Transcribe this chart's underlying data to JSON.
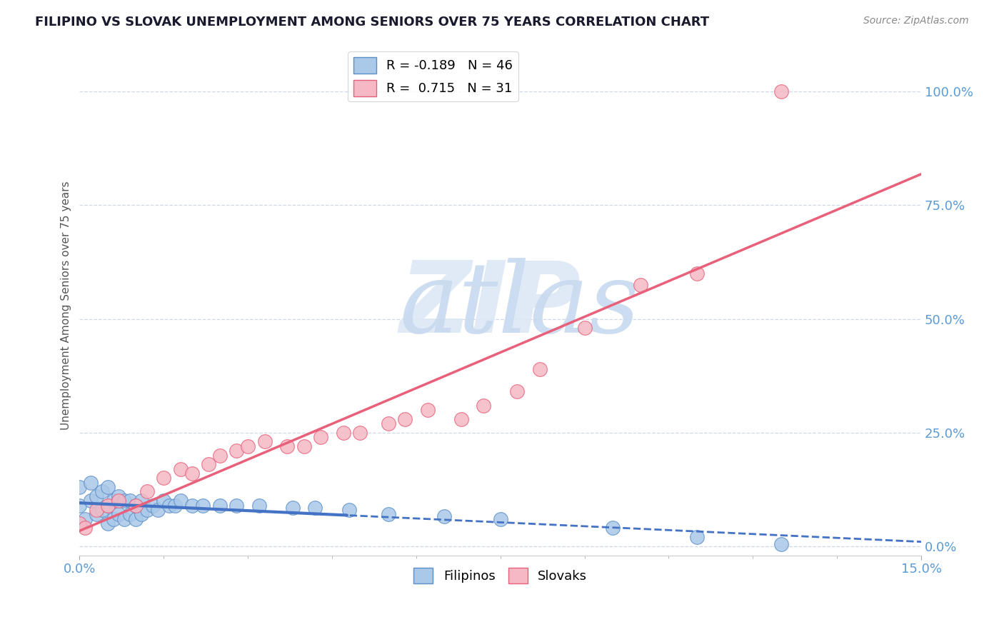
{
  "title": "FILIPINO VS SLOVAK UNEMPLOYMENT AMONG SENIORS OVER 75 YEARS CORRELATION CHART",
  "source": "Source: ZipAtlas.com",
  "ylabel": "Unemployment Among Seniors over 75 years",
  "ytick_vals": [
    0.0,
    0.25,
    0.5,
    0.75,
    1.0
  ],
  "ytick_labels": [
    "0.0%",
    "25.0%",
    "50.0%",
    "75.0%",
    "100.0%"
  ],
  "xlim": [
    0.0,
    0.15
  ],
  "ylim": [
    -0.02,
    1.08
  ],
  "legend_filipino_R": "-0.189",
  "legend_filipino_N": "46",
  "legend_slovak_R": "0.715",
  "legend_slovak_N": "31",
  "color_filipino_face": "#aac8e8",
  "color_filipino_edge": "#5a8fc8",
  "color_filipino_line": "#4472c4",
  "color_slovak_face": "#f5b8c4",
  "color_slovak_edge": "#e8607a",
  "color_slovak_line": "#e8607a",
  "filipino_x": [
    0.0,
    0.0,
    0.0,
    0.001,
    0.002,
    0.002,
    0.003,
    0.003,
    0.004,
    0.004,
    0.005,
    0.005,
    0.005,
    0.006,
    0.006,
    0.007,
    0.007,
    0.008,
    0.008,
    0.009,
    0.009,
    0.01,
    0.01,
    0.011,
    0.011,
    0.012,
    0.013,
    0.014,
    0.015,
    0.016,
    0.017,
    0.018,
    0.02,
    0.022,
    0.025,
    0.028,
    0.032,
    0.038,
    0.042,
    0.048,
    0.055,
    0.065,
    0.075,
    0.095,
    0.11,
    0.125
  ],
  "filipino_y": [
    0.05,
    0.09,
    0.13,
    0.06,
    0.1,
    0.14,
    0.07,
    0.11,
    0.08,
    0.12,
    0.05,
    0.09,
    0.13,
    0.06,
    0.1,
    0.07,
    0.11,
    0.06,
    0.1,
    0.07,
    0.1,
    0.06,
    0.09,
    0.07,
    0.1,
    0.08,
    0.09,
    0.08,
    0.1,
    0.09,
    0.09,
    0.1,
    0.09,
    0.09,
    0.09,
    0.09,
    0.09,
    0.085,
    0.085,
    0.08,
    0.07,
    0.065,
    0.06,
    0.04,
    0.02,
    0.005
  ],
  "slovak_x": [
    0.0,
    0.001,
    0.003,
    0.005,
    0.007,
    0.01,
    0.012,
    0.015,
    0.018,
    0.02,
    0.023,
    0.025,
    0.028,
    0.03,
    0.033,
    0.037,
    0.04,
    0.043,
    0.047,
    0.05,
    0.055,
    0.058,
    0.062,
    0.068,
    0.072,
    0.078,
    0.082,
    0.09,
    0.1,
    0.11,
    0.125
  ],
  "slovak_y": [
    0.05,
    0.04,
    0.08,
    0.09,
    0.1,
    0.09,
    0.12,
    0.15,
    0.17,
    0.16,
    0.18,
    0.2,
    0.21,
    0.22,
    0.23,
    0.22,
    0.22,
    0.24,
    0.25,
    0.25,
    0.27,
    0.28,
    0.3,
    0.28,
    0.31,
    0.34,
    0.39,
    0.48,
    0.575,
    0.6,
    1.0
  ],
  "trendline_split_x": 0.048,
  "grid_color": "#d0d8e8",
  "tick_color": "#5b9bd5",
  "title_color": "#1a1a2e",
  "source_color": "#888888",
  "ylabel_color": "#555555",
  "watermark_zip_color": "#dce8f5",
  "watermark_atlas_color": "#c8daf0"
}
